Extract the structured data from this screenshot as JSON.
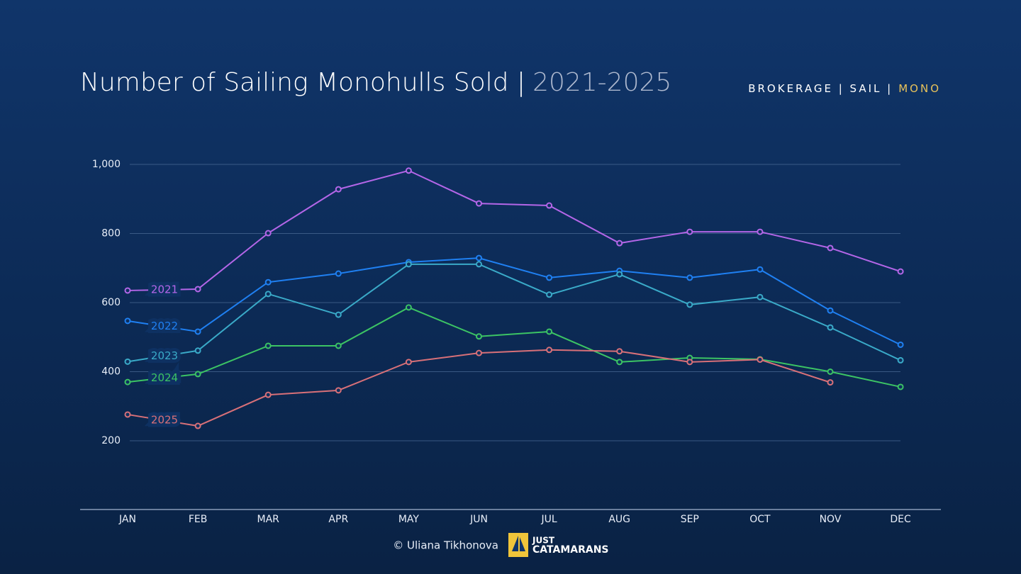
{
  "header": {
    "title": "Number of Sailing Monohulls Sold |",
    "subtitle": "2021-2025",
    "breadcrumb": [
      "BROKERAGE | SAIL |",
      "MONO"
    ]
  },
  "chart_data": {
    "type": "line",
    "categories": [
      "JAN",
      "FEB",
      "MAR",
      "APR",
      "MAY",
      "JUN",
      "JUL",
      "AUG",
      "SEP",
      "OCT",
      "NOV",
      "DEC"
    ],
    "series": [
      {
        "name": "2021",
        "color": "#b466e8",
        "values": [
          635,
          639,
          801,
          928,
          982,
          887,
          881,
          772,
          805,
          805,
          758,
          690
        ]
      },
      {
        "name": "2022",
        "color": "#1f80f2",
        "values": [
          547,
          516,
          659,
          684,
          717,
          729,
          672,
          692,
          672,
          696,
          577,
          478
        ]
      },
      {
        "name": "2023",
        "color": "#3aaac8",
        "values": [
          429,
          461,
          625,
          565,
          711,
          711,
          623,
          682,
          594,
          616,
          528,
          433
        ]
      },
      {
        "name": "2024",
        "color": "#3cc464",
        "values": [
          370,
          393,
          475,
          475,
          586,
          502,
          516,
          428,
          440,
          436,
          400,
          356
        ]
      },
      {
        "name": "2025",
        "color": "#d87078",
        "values": [
          276,
          243,
          333,
          346,
          428,
          454,
          463,
          459,
          428,
          435,
          369,
          null
        ]
      }
    ],
    "ylim": [
      0,
      1000
    ],
    "yticks": [
      200,
      400,
      600,
      800,
      {
        "value": 1000,
        "label": "1,000"
      }
    ],
    "grid": true
  },
  "footer": {
    "credit": "© Uliana Tikhonova",
    "logo": [
      "JUST",
      "CATAMARANS"
    ]
  }
}
